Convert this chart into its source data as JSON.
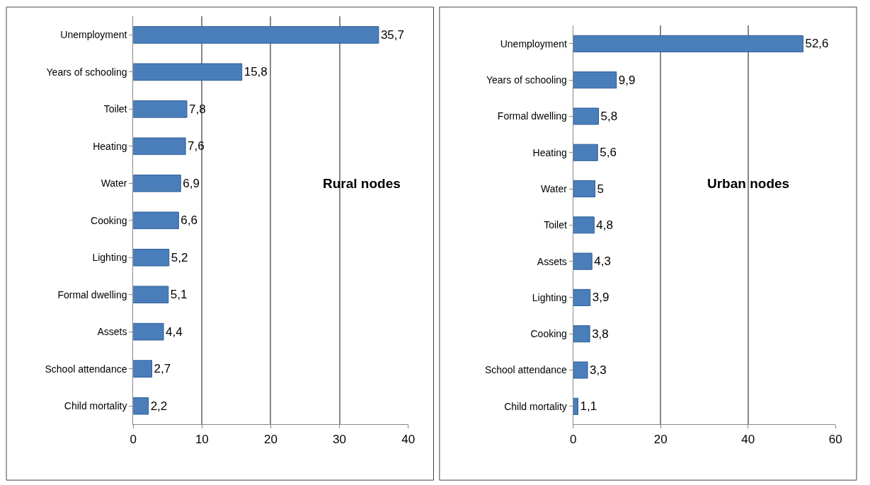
{
  "chart_data": [
    {
      "type": "bar",
      "orientation": "horizontal",
      "title": "Rural nodes",
      "categories": [
        "Unemployment",
        "Years of schooling",
        "Toilet",
        "Heating",
        "Water",
        "Cooking",
        "Lighting",
        "Formal dwelling",
        "Assets",
        "School attendance",
        "Child mortality"
      ],
      "values": [
        35.7,
        15.8,
        7.8,
        7.6,
        6.9,
        6.6,
        5.2,
        5.1,
        4.4,
        2.7,
        2.2
      ],
      "value_labels": [
        "35,7",
        "15,8",
        "7,8",
        "7,6",
        "6,9",
        "6,6",
        "5,2",
        "5,1",
        "4,4",
        "2,7",
        "2,2"
      ],
      "color": "#4a7ebb",
      "xlim": [
        0,
        40
      ],
      "xticks": [
        0,
        10,
        20,
        30,
        40
      ],
      "grid": "x"
    },
    {
      "type": "bar",
      "orientation": "horizontal",
      "title": "Urban nodes",
      "categories": [
        "Unemployment",
        "Years of schooling",
        "Formal dwelling",
        "Heating",
        "Water",
        "Toilet",
        "Assets",
        "Lighting",
        "Cooking",
        "School attendance",
        "Child mortality"
      ],
      "values": [
        52.6,
        9.9,
        5.8,
        5.6,
        5,
        4.8,
        4.3,
        3.9,
        3.8,
        3.3,
        1.1
      ],
      "value_labels": [
        "52,6",
        "9,9",
        "5,8",
        "5,6",
        "5",
        "4,8",
        "4,3",
        "3,9",
        "3,8",
        "3,3",
        "1,1"
      ],
      "color": "#4a7ebb",
      "xlim": [
        0,
        60
      ],
      "xticks": [
        0,
        20,
        40,
        60
      ],
      "grid": "x"
    }
  ]
}
